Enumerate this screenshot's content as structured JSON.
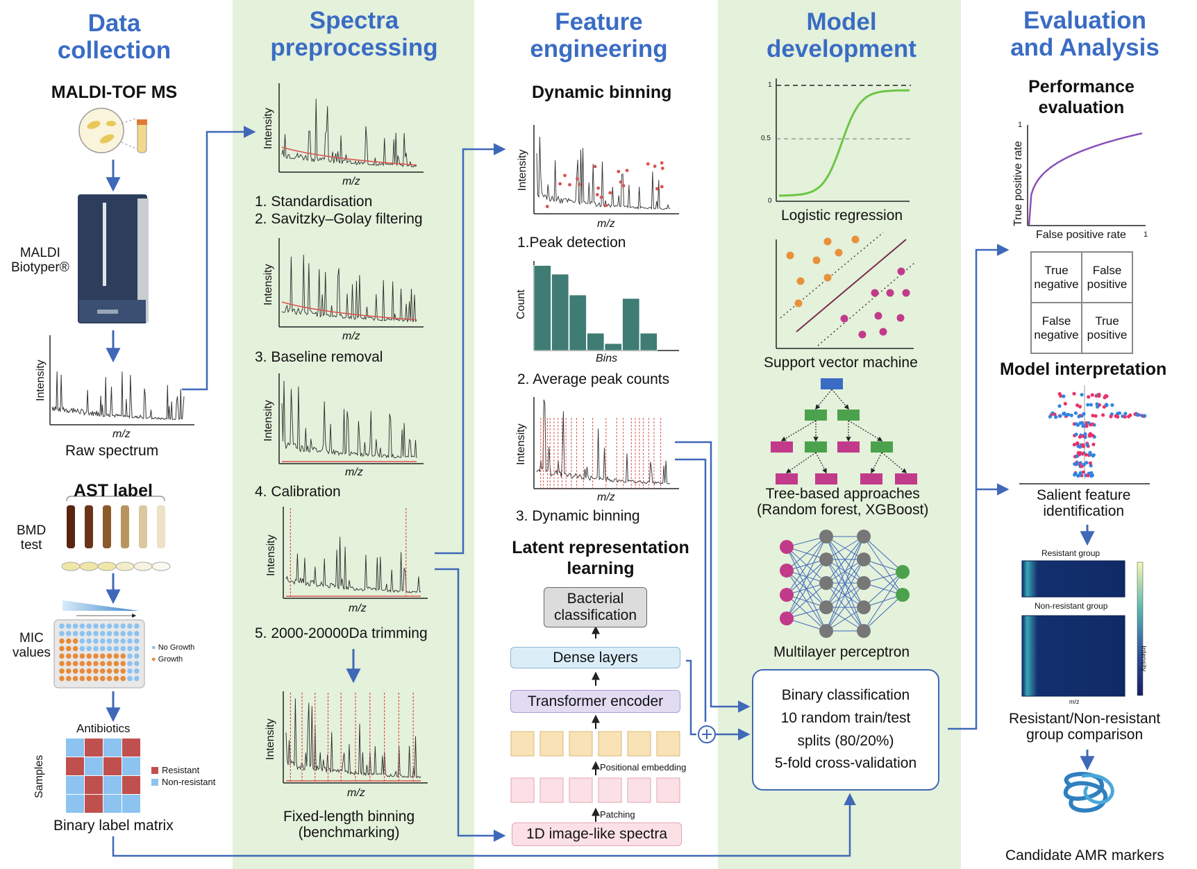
{
  "columns": {
    "c1": "Data\ncollection",
    "c2": "Spectra\npreprocessing",
    "c3": "Feature\nengineering",
    "c4": "Model\ndevelopment",
    "c5": "Evaluation\nand Analysis"
  },
  "data_collection": {
    "maldi_title": "MALDI-TOF MS",
    "biotyper": "MALDI\nBiotyper®",
    "axis_y": "Intensity",
    "axis_x": "m/z",
    "raw_spectrum": "Raw spectrum",
    "ast_title": "AST label",
    "bmd": "BMD\ntest",
    "mic": "MIC\nvalues",
    "no_growth": "No Growth",
    "growth": "Growth",
    "antibiotics": "Antibiotics",
    "samples": "Samples",
    "resistant": "Resistant",
    "non_resistant": "Non-resistant",
    "label_matrix": "Binary label matrix"
  },
  "preprocessing": {
    "axis_y": "Intensity",
    "axis_x": "m/z",
    "step12": "1. Standardisation\n2. Savitzky–Golay filtering",
    "step3": "3. Baseline removal",
    "step4": "4. Calibration",
    "step5": "5. 2000-20000Da trimming",
    "fixed": "Fixed-length binning\n(benchmarking)"
  },
  "feature": {
    "dyn_title": "Dynamic binning",
    "axis_y": "Intensity",
    "axis_x": "m/z",
    "count": "Count",
    "bins": "Bins",
    "step1": "1.Peak detection",
    "step2": "2. Average peak counts",
    "step3": "3. Dynamic binning",
    "latent_title": "Latent representation\nlearning",
    "bacterial": "Bacterial\nclassification",
    "dense": "Dense layers",
    "transformer": "Transformer encoder",
    "positional": "Positional embedding",
    "patching": "Patching",
    "image_like": "1D image-like spectra",
    "hist_values": [
      0.98,
      0.88,
      0.64,
      0.2,
      0.08,
      0.6,
      0.2
    ]
  },
  "model": {
    "tick_1": "1",
    "tick_05": "0.5",
    "tick_0": "0",
    "logistic": "Logistic regression",
    "svm": "Support vector machine",
    "tree": "Tree-based approaches\n(Random forest, XGBoost)",
    "mlp": "Multilayer perceptron",
    "binary": "Binary classification\n10 random train/test\nsplits (80/20%)\n5-fold cross-validation"
  },
  "evaluation": {
    "perf_title": "Performance\nevaluation",
    "tpr": "True positive rate",
    "fpr": "False positive rate",
    "roc_tick_1y": "1",
    "roc_tick_1x": "1",
    "tn": "True\nnegative",
    "fp": "False\npositive",
    "fn": "False\nnegative",
    "tp": "True\npositive",
    "interp_title": "Model interpretation",
    "salient": "Salient feature\nidentification",
    "resistant_group": "Resistant group",
    "non_resistant_group": "Non-resistant group",
    "intensity": "Intensity",
    "mz": "m/z",
    "group_compare": "Resistant/Non-resistant\ngroup comparison",
    "candidates": "Candidate AMR markers"
  },
  "colors": {
    "heading": "#3a6cc4",
    "stripe": "#e4f1db",
    "arrow": "#3f68b8",
    "resistant": "#c0504d",
    "non_resistant": "#8cc3f0",
    "teal_bar": "#3e7c74",
    "peak": "#d9534f"
  }
}
